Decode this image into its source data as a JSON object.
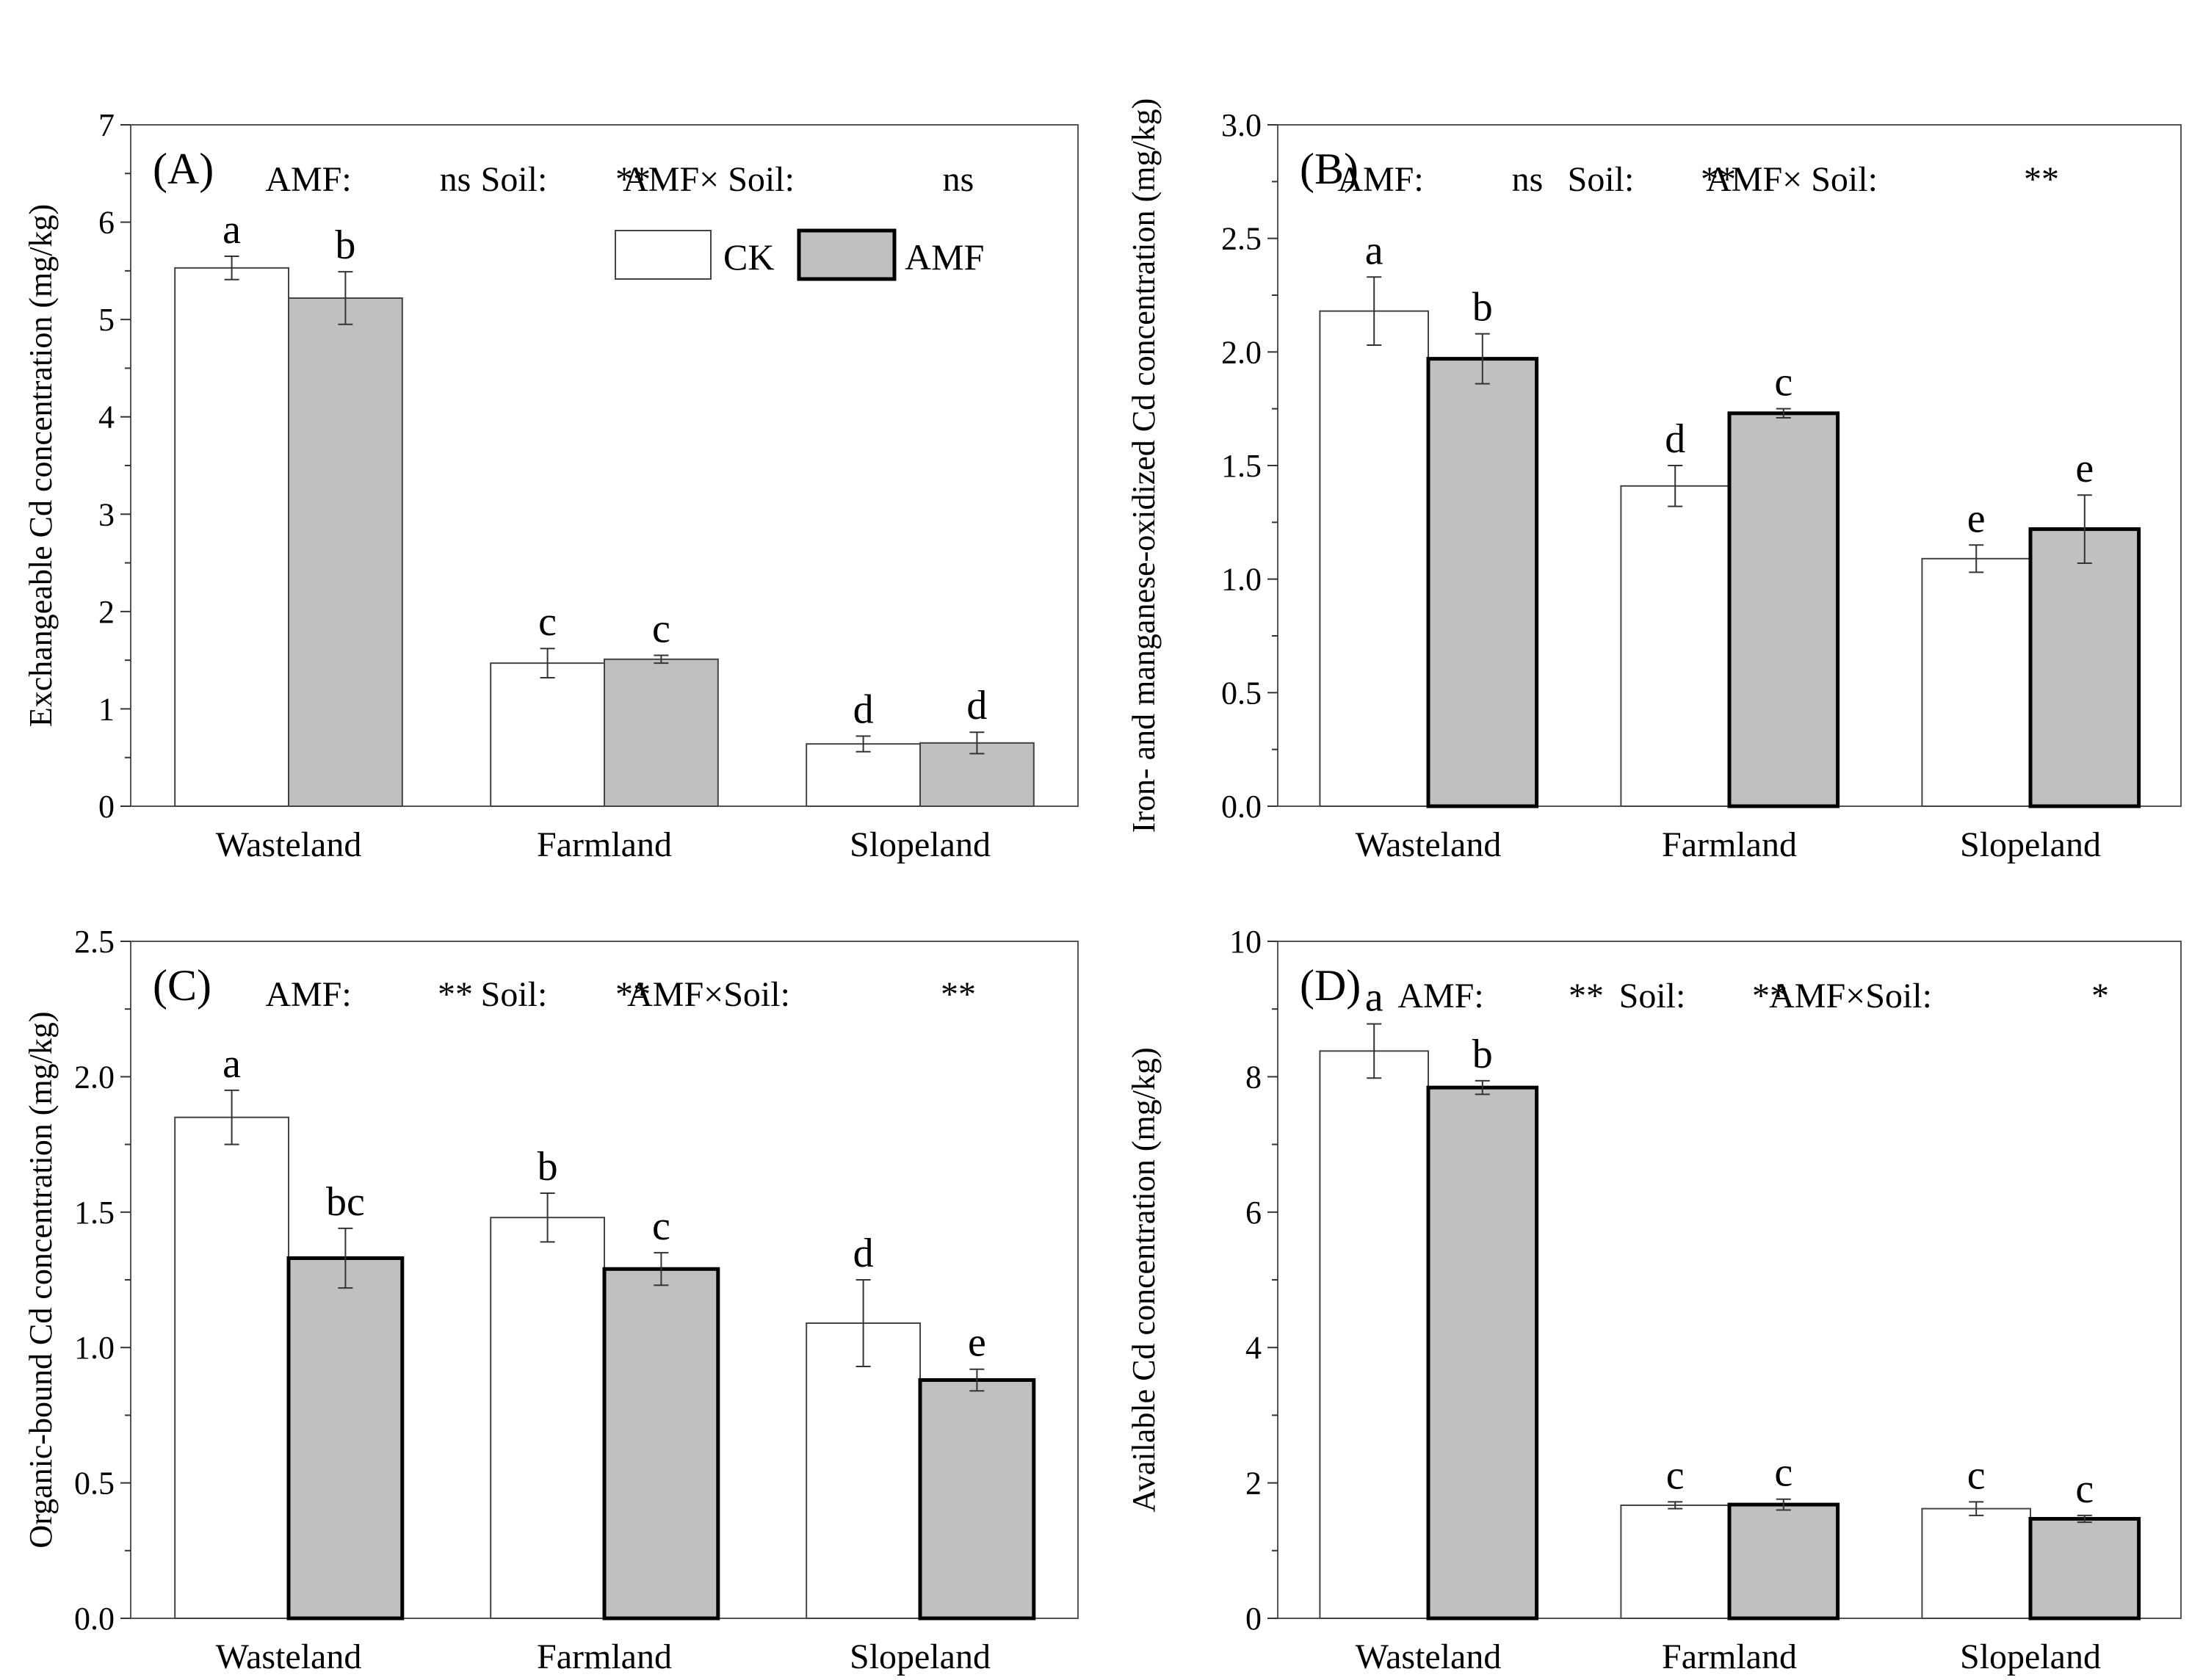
{
  "legend": {
    "ck_label": "CK",
    "amf_label": "AMF",
    "ck_color": "#ffffff",
    "amf_color": "#c0c0c0"
  },
  "chart_data": [
    {
      "type": "bar",
      "panel": "(A)",
      "stats": [
        "AMF:",
        "ns",
        "Soil:",
        "**",
        "AMF× Soil:",
        "ns"
      ],
      "ylabel": "Exchangeable Cd concentration (mg/kg)",
      "xlabel": "",
      "ylim": [
        0,
        7
      ],
      "yticks": [
        0,
        1,
        2,
        3,
        4,
        5,
        6,
        7
      ],
      "ytick_labels": [
        "0",
        "1",
        "2",
        "3",
        "4",
        "5",
        "6",
        "7"
      ],
      "categories": [
        "Wasteland",
        "Farmland",
        "Slopeland"
      ],
      "series": [
        {
          "name": "CK",
          "values": [
            5.53,
            1.47,
            0.64
          ],
          "errors": [
            0.12,
            0.15,
            0.08
          ],
          "letters": [
            "a",
            "c",
            "d"
          ]
        },
        {
          "name": "AMF",
          "values": [
            5.22,
            1.51,
            0.65
          ],
          "errors": [
            0.27,
            0.04,
            0.11
          ],
          "letters": [
            "b",
            "c",
            "d"
          ]
        }
      ]
    },
    {
      "type": "bar",
      "panel": "(B)",
      "stats": [
        "AMF:",
        "ns",
        "Soil:",
        "**",
        "AMF× Soil:",
        "**"
      ],
      "ylabel": "Iron- and manganese-oxidized Cd concentration (mg/kg)",
      "xlabel": "",
      "ylim": [
        0,
        3.0
      ],
      "yticks": [
        0,
        0.5,
        1.0,
        1.5,
        2.0,
        2.5,
        3.0
      ],
      "ytick_labels": [
        "0.0",
        "0.5",
        "1.0",
        "1.5",
        "2.0",
        "2.5",
        "3.0"
      ],
      "categories": [
        "Wasteland",
        "Farmland",
        "Slopeland"
      ],
      "series": [
        {
          "name": "CK",
          "values": [
            2.18,
            1.41,
            1.09
          ],
          "errors": [
            0.15,
            0.09,
            0.06
          ],
          "letters": [
            "a",
            "d",
            "e"
          ]
        },
        {
          "name": "AMF",
          "values": [
            1.97,
            1.73,
            1.22
          ],
          "errors": [
            0.11,
            0.02,
            0.15
          ],
          "letters": [
            "b",
            "c",
            "e"
          ]
        }
      ]
    },
    {
      "type": "bar",
      "panel": "(C)",
      "stats": [
        "AMF:",
        "**",
        "Soil:",
        "**",
        "AMF×Soil:",
        "**"
      ],
      "ylabel": "Organic-bound Cd concentration (mg/kg)",
      "xlabel": "",
      "ylim": [
        0,
        2.5
      ],
      "yticks": [
        0,
        0.5,
        1.0,
        1.5,
        2.0,
        2.5
      ],
      "ytick_labels": [
        "0.0",
        "0.5",
        "1.0",
        "1.5",
        "2.0",
        "2.5"
      ],
      "categories": [
        "Wasteland",
        "Farmland",
        "Slopeland"
      ],
      "series": [
        {
          "name": "CK",
          "values": [
            1.85,
            1.48,
            1.09
          ],
          "errors": [
            0.1,
            0.09,
            0.16
          ],
          "letters": [
            "a",
            "b",
            "d"
          ]
        },
        {
          "name": "AMF",
          "values": [
            1.33,
            1.29,
            0.88
          ],
          "errors": [
            0.11,
            0.06,
            0.04
          ],
          "letters": [
            "bc",
            "c",
            "e"
          ]
        }
      ]
    },
    {
      "type": "bar",
      "panel": "(D)",
      "stats": [
        "AMF:",
        "**",
        "Soil:",
        "**",
        "AMF×Soil:",
        "*"
      ],
      "ylabel": "Available Cd concentration (mg/kg)",
      "xlabel": "",
      "ylim": [
        0,
        10
      ],
      "yticks": [
        0,
        2,
        4,
        6,
        8,
        10
      ],
      "ytick_labels": [
        "0",
        "2",
        "4",
        "6",
        "8",
        "10"
      ],
      "categories": [
        "Wasteland",
        "Farmland",
        "Slopeland"
      ],
      "series": [
        {
          "name": "CK",
          "values": [
            8.38,
            1.67,
            1.62
          ],
          "errors": [
            0.4,
            0.05,
            0.1
          ],
          "letters": [
            "a",
            "c",
            "c"
          ]
        },
        {
          "name": "AMF",
          "values": [
            7.84,
            1.68,
            1.47
          ],
          "errors": [
            0.1,
            0.08,
            0.05
          ],
          "letters": [
            "b",
            "c",
            "c"
          ]
        }
      ]
    }
  ]
}
